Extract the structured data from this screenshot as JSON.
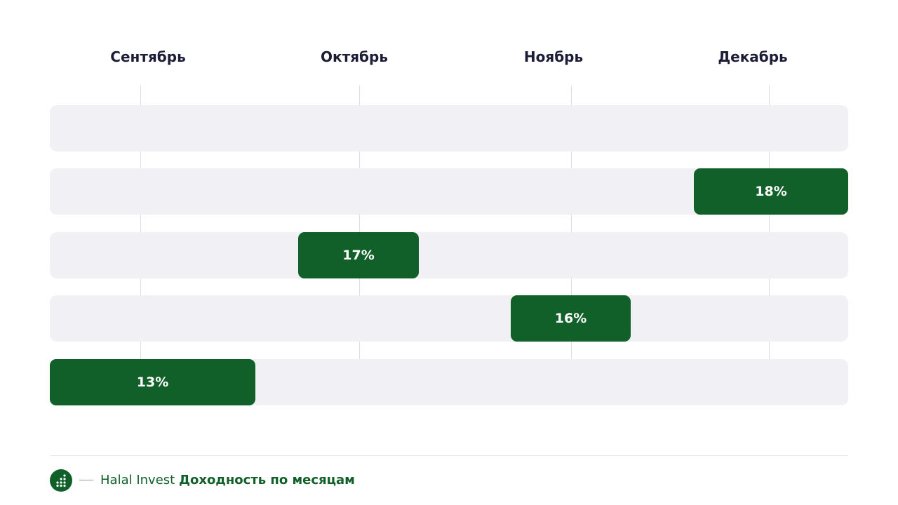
{
  "chart_data": {
    "type": "bar",
    "orientation": "horizontal-timeline",
    "categories": [
      "Сентябрь",
      "Октябрь",
      "Ноябрь",
      "Декабрь"
    ],
    "rows": [
      {
        "label": "",
        "month": null
      },
      {
        "label": "18%",
        "month": "Декабрь",
        "value": 18
      },
      {
        "label": "17%",
        "month": "Октябрь",
        "value": 17
      },
      {
        "label": "16%",
        "month": "Ноябрь",
        "value": 16
      },
      {
        "label": "13%",
        "month": "Сентябрь",
        "value": 13
      }
    ],
    "colors": {
      "bar": "#11602a",
      "track": "#f0f0f5",
      "grid": "#dcdce4",
      "label": "#1c1c36"
    },
    "grid": true,
    "legend": "none"
  },
  "footer": {
    "brand": "Halal Invest",
    "caption": "Доходность по месяцам",
    "logo_icon": "dots-logo-icon"
  }
}
